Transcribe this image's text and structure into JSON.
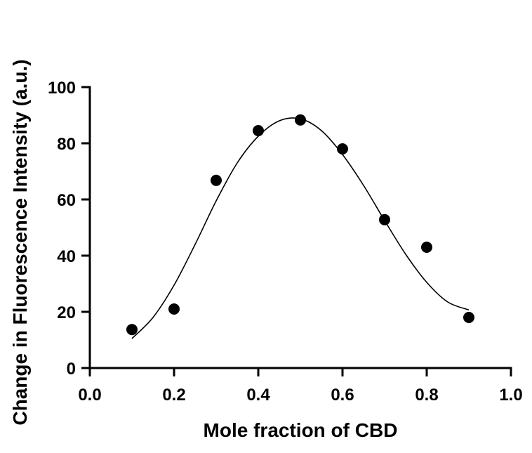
{
  "chart_data": {
    "type": "scatter",
    "xlabel": "Mole fraction of CBD",
    "ylabel": "Change in Fluorescence Intensity (a.u.)",
    "xlim": [
      0.0,
      1.0
    ],
    "ylim": [
      0,
      100
    ],
    "x_ticks": [
      0.0,
      0.2,
      0.4,
      0.6,
      0.8,
      1.0
    ],
    "x_tick_labels": [
      "0.0",
      "0.2",
      "0.4",
      "0.6",
      "0.8",
      "1.0"
    ],
    "y_ticks": [
      0,
      20,
      40,
      60,
      80,
      100
    ],
    "y_tick_labels": [
      "0",
      "20",
      "40",
      "60",
      "80",
      "100"
    ],
    "grid": false,
    "series": [
      {
        "marker": "circle",
        "color": "#000000",
        "x": [
          0.1,
          0.2,
          0.3,
          0.4,
          0.5,
          0.6,
          0.7,
          0.8,
          0.9
        ],
        "y": [
          13.7,
          21.0,
          66.8,
          84.5,
          88.3,
          78.0,
          52.8,
          43.0,
          18.0
        ]
      }
    ],
    "fit_curve": {
      "color": "#000000",
      "x": [
        0.1,
        0.15,
        0.2,
        0.25,
        0.3,
        0.35,
        0.4,
        0.45,
        0.5,
        0.55,
        0.6,
        0.65,
        0.7,
        0.75,
        0.8,
        0.85,
        0.9
      ],
      "y": [
        10.5,
        18.0,
        29.5,
        44.0,
        59.5,
        73.0,
        82.5,
        88.0,
        88.7,
        84.5,
        76.0,
        65.0,
        52.5,
        40.5,
        30.5,
        23.5,
        20.7
      ]
    }
  }
}
